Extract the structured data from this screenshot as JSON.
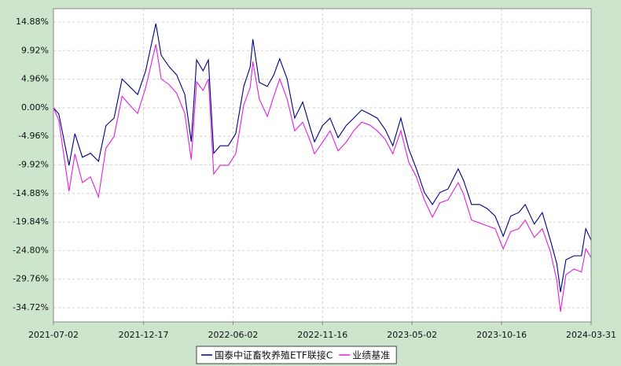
{
  "chart_data": {
    "type": "line",
    "x": [
      "2021-07-02",
      "2021-07-12",
      "2021-07-31",
      "2021-08-11",
      "2021-08-25",
      "2021-09-09",
      "2021-09-24",
      "2021-10-08",
      "2021-10-23",
      "2021-11-07",
      "2021-11-21",
      "2021-12-06",
      "2021-12-21",
      "2022-01-09",
      "2022-01-19",
      "2022-02-03",
      "2022-02-17",
      "2022-03-04",
      "2022-03-16",
      "2022-03-26",
      "2022-04-07",
      "2022-04-17",
      "2022-04-27",
      "2022-05-09",
      "2022-05-24",
      "2022-06-07",
      "2022-06-22",
      "2022-07-04",
      "2022-07-09",
      "2022-07-21",
      "2022-08-05",
      "2022-08-17",
      "2022-08-28",
      "2022-09-11",
      "2022-09-25",
      "2022-10-10",
      "2022-10-25",
      "2022-11-01",
      "2022-11-16",
      "2022-11-30",
      "2022-12-15",
      "2022-12-30",
      "2023-01-13",
      "2023-01-28",
      "2023-02-12",
      "2023-02-26",
      "2023-03-13",
      "2023-03-27",
      "2023-04-11",
      "2023-04-26",
      "2023-05-10",
      "2023-05-25",
      "2023-06-09",
      "2023-06-23",
      "2023-07-08",
      "2023-07-27",
      "2023-08-06",
      "2023-08-21",
      "2023-09-05",
      "2023-09-19",
      "2023-10-04",
      "2023-10-19",
      "2023-11-02",
      "2023-11-17",
      "2023-11-29",
      "2023-12-16",
      "2023-12-31",
      "2024-01-15",
      "2024-01-27",
      "2024-02-03",
      "2024-02-13",
      "2024-02-28",
      "2024-03-13",
      "2024-03-21",
      "2024-03-31"
    ],
    "series": [
      {
        "name": "国泰中证畜牧养殖ETF联接C",
        "color": "#000080",
        "values": [
          0,
          -1.1,
          -10.0,
          -4.5,
          -8.6,
          -7.9,
          -9.3,
          -3.1,
          -1.8,
          5.0,
          3.7,
          2.3,
          6.4,
          14.6,
          9.1,
          7.1,
          5.7,
          2.3,
          -5.9,
          8.3,
          6.4,
          8.3,
          -7.9,
          -6.6,
          -6.6,
          -4.5,
          3.7,
          7.1,
          11.9,
          4.4,
          3.7,
          5.7,
          8.5,
          5.0,
          -1.8,
          1.0,
          -3.8,
          -5.9,
          -3.1,
          -1.8,
          -5.2,
          -3.1,
          -1.8,
          -0.4,
          -1.1,
          -1.8,
          -3.8,
          -6.6,
          -1.8,
          -7.2,
          -10.6,
          -14.7,
          -16.8,
          -14.7,
          -14.1,
          -10.6,
          -12.6,
          -16.8,
          -16.8,
          -17.5,
          -18.8,
          -22.3,
          -18.8,
          -18.2,
          -16.8,
          -20.2,
          -18.2,
          -23.0,
          -27.1,
          -32.0,
          -26.4,
          -25.7,
          -25.7,
          -21.0,
          -23.0
        ]
      },
      {
        "name": "业绩基准",
        "color": "#e020e0",
        "values": [
          0,
          -2.2,
          -14.5,
          -8,
          -13,
          -12,
          -15.5,
          -7,
          -5,
          2,
          0.5,
          -1,
          3.5,
          11,
          5,
          4,
          2.5,
          -1,
          -9,
          4.5,
          3,
          5,
          -11.5,
          -10,
          -10,
          -8,
          0.5,
          3.5,
          8,
          1.5,
          -1.5,
          2,
          5,
          1.5,
          -4,
          -2.5,
          -6,
          -8,
          -6,
          -4,
          -7.5,
          -6,
          -4,
          -2.5,
          -3,
          -4,
          -5.5,
          -8,
          -4,
          -9.5,
          -12,
          -16,
          -19,
          -16.5,
          -16,
          -13,
          -15,
          -19.5,
          -20,
          -20.5,
          -21,
          -24.5,
          -21.5,
          -21,
          -19.5,
          -22.5,
          -21,
          -25,
          -30,
          -35.4,
          -29,
          -28,
          -28.5,
          -24.5,
          -26
        ]
      }
    ],
    "xlim": [
      "2021-07-02",
      "2024-03-31"
    ],
    "xticks": [
      "2021-07-02",
      "2021-12-17",
      "2022-06-02",
      "2022-11-16",
      "2023-05-02",
      "2023-10-16",
      "2024-03-31"
    ],
    "ylim": [
      -37.18,
      17.2
    ],
    "yticks": [
      {
        "value": 14.88,
        "label": "14.88%"
      },
      {
        "value": 9.92,
        "label": "9.92%"
      },
      {
        "value": 4.96,
        "label": "4.96%"
      },
      {
        "value": 0,
        "label": "0.00%"
      },
      {
        "value": -4.96,
        "label": "-4.96%"
      },
      {
        "value": -9.92,
        "label": "-9.92%"
      },
      {
        "value": -14.88,
        "label": "-14.88%"
      },
      {
        "value": -19.84,
        "label": "-19.84%"
      },
      {
        "value": -24.8,
        "label": "-24.80%"
      },
      {
        "value": -29.76,
        "label": "-29.76%"
      },
      {
        "value": -34.72,
        "label": "-34.72%"
      }
    ],
    "grid": true
  }
}
